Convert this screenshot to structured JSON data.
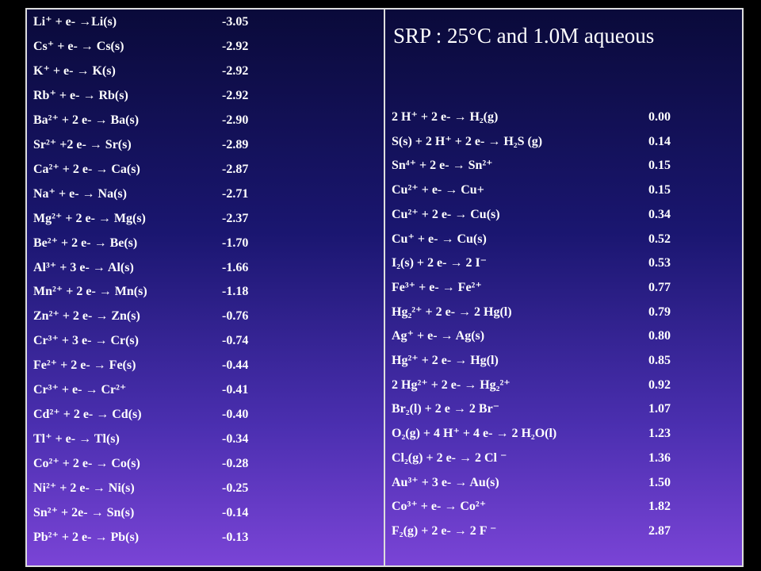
{
  "title": "SRP : 25°C and 1.0M  aqueous",
  "left_rows": [
    [
      "Li⁺ + e- →Li(s)",
      "-3.05"
    ],
    [
      "Cs⁺ + e- → Cs(s)",
      "-2.92"
    ],
    [
      "K⁺ + e- → K(s)",
      "-2.92"
    ],
    [
      "Rb⁺ + e- → Rb(s)",
      "-2.92"
    ],
    [
      "Ba²⁺ + 2 e- → Ba(s)",
      "-2.90"
    ],
    [
      "Sr²⁺ +2 e- → Sr(s)",
      "-2.89"
    ],
    [
      "Ca²⁺ + 2 e- → Ca(s)",
      "-2.87"
    ],
    [
      "Na⁺ + e- → Na(s)",
      "-2.71"
    ],
    [
      "Mg²⁺ + 2 e- → Mg(s)",
      "-2.37"
    ],
    [
      "Be²⁺ + 2 e- → Be(s)",
      "-1.70"
    ],
    [
      "Al³⁺ + 3 e- → Al(s)",
      "-1.66"
    ],
    [
      "Mn²⁺ + 2 e- → Mn(s)",
      "-1.18"
    ],
    [
      "Zn²⁺ + 2 e- → Zn(s)",
      "-0.76"
    ],
    [
      "Cr³⁺ + 3 e- → Cr(s)",
      "-0.74"
    ],
    [
      "Fe²⁺ + 2 e- → Fe(s)",
      "-0.44"
    ],
    [
      "Cr³⁺ + e- → Cr²⁺",
      "-0.41"
    ],
    [
      "Cd²⁺ + 2 e- → Cd(s)",
      "-0.40"
    ],
    [
      "Tl⁺ + e- → Tl(s)",
      "-0.34"
    ],
    [
      "Co²⁺ + 2 e- → Co(s)",
      "-0.28"
    ],
    [
      "Ni²⁺ + 2 e- → Ni(s)",
      "-0.25"
    ],
    [
      "Sn²⁺ + 2e- → Sn(s)",
      "-0.14"
    ],
    [
      "Pb²⁺ + 2 e- → Pb(s)",
      "-0.13"
    ]
  ],
  "right_rows": [
    [
      "2 H⁺ + 2 e- → H₂(g)",
      "0.00"
    ],
    [
      "S(s) + 2 H⁺ + 2 e- → H₂S (g)",
      "0.14"
    ],
    [
      "Sn⁴⁺ + 2 e- → Sn²⁺",
      "0.15"
    ],
    [
      "Cu²⁺ + e- → Cu+",
      "0.15"
    ],
    [
      "Cu²⁺ + 2 e- → Cu(s)",
      "0.34"
    ],
    [
      "Cu⁺ + e- → Cu(s)",
      "0.52"
    ],
    [
      "I₂(s) + 2 e- → 2 I⁻",
      "0.53"
    ],
    [
      "Fe³⁺ + e- → Fe²⁺",
      "0.77"
    ],
    [
      "Hg₂²⁺ + 2 e- → 2 Hg(l)",
      "0.79"
    ],
    [
      "Ag⁺ + e- → Ag(s)",
      "0.80"
    ],
    [
      "Hg²⁺ + 2 e- → Hg(l)",
      "0.85"
    ],
    [
      "2 Hg²⁺ + 2 e- → Hg₂²⁺",
      "0.92"
    ],
    [
      "Br₂(l) + 2 e → 2 Br⁻",
      "1.07"
    ],
    [
      "O₂(g) + 4 H⁺ + 4 e- → 2 H₂O(l)",
      "1.23"
    ],
    [
      "Cl₂(g) + 2 e- → 2 Cl ⁻",
      "1.36"
    ],
    [
      "Au³⁺ + 3 e- → Au(s)",
      "1.50"
    ],
    [
      "Co³⁺ + e- → Co²⁺",
      "1.82"
    ],
    [
      "F₂(g) + 2 e- → 2 F ⁻",
      "2.87"
    ]
  ]
}
